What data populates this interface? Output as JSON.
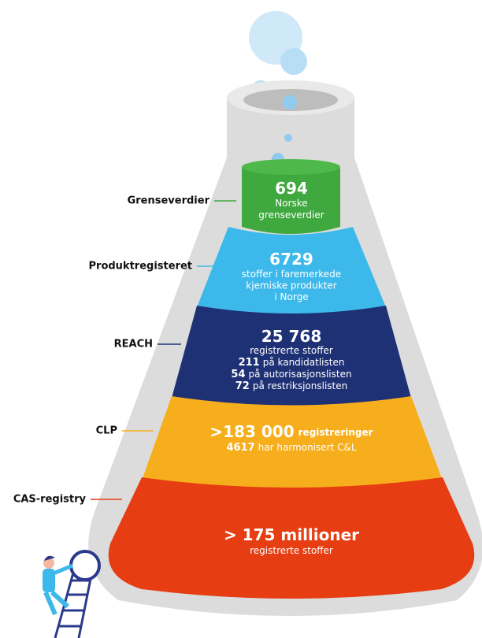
{
  "layers": [
    {
      "label": "Grenseverdier",
      "value": "694",
      "lines": [
        {
          "text": "Norske"
        },
        {
          "text": "grenseverdier"
        }
      ]
    },
    {
      "label": "Produktregisteret",
      "value": "6729",
      "lines": [
        {
          "text": "stoffer i faremerkede"
        },
        {
          "text": "kjemiske produkter"
        },
        {
          "text": "i Norge"
        }
      ]
    },
    {
      "label": "REACH",
      "value": "25 768",
      "lines": [
        {
          "text": "registrerte stoffer"
        },
        {
          "number": "211",
          "text": "på kandidatlisten"
        },
        {
          "number": "54",
          "text": "på autorisasjonslisten"
        },
        {
          "number": "72",
          "text": "på restriksjonslisten"
        }
      ]
    },
    {
      "label": "CLP",
      "value": ">183 000",
      "value_text": "registreringer",
      "lines": [
        {
          "number": "4617",
          "text": "har harmonisert C&L"
        }
      ]
    },
    {
      "label": "CAS-registry",
      "value": "> 175 millioner",
      "lines": [
        {
          "text": "registrerte stoffer"
        }
      ]
    }
  ]
}
